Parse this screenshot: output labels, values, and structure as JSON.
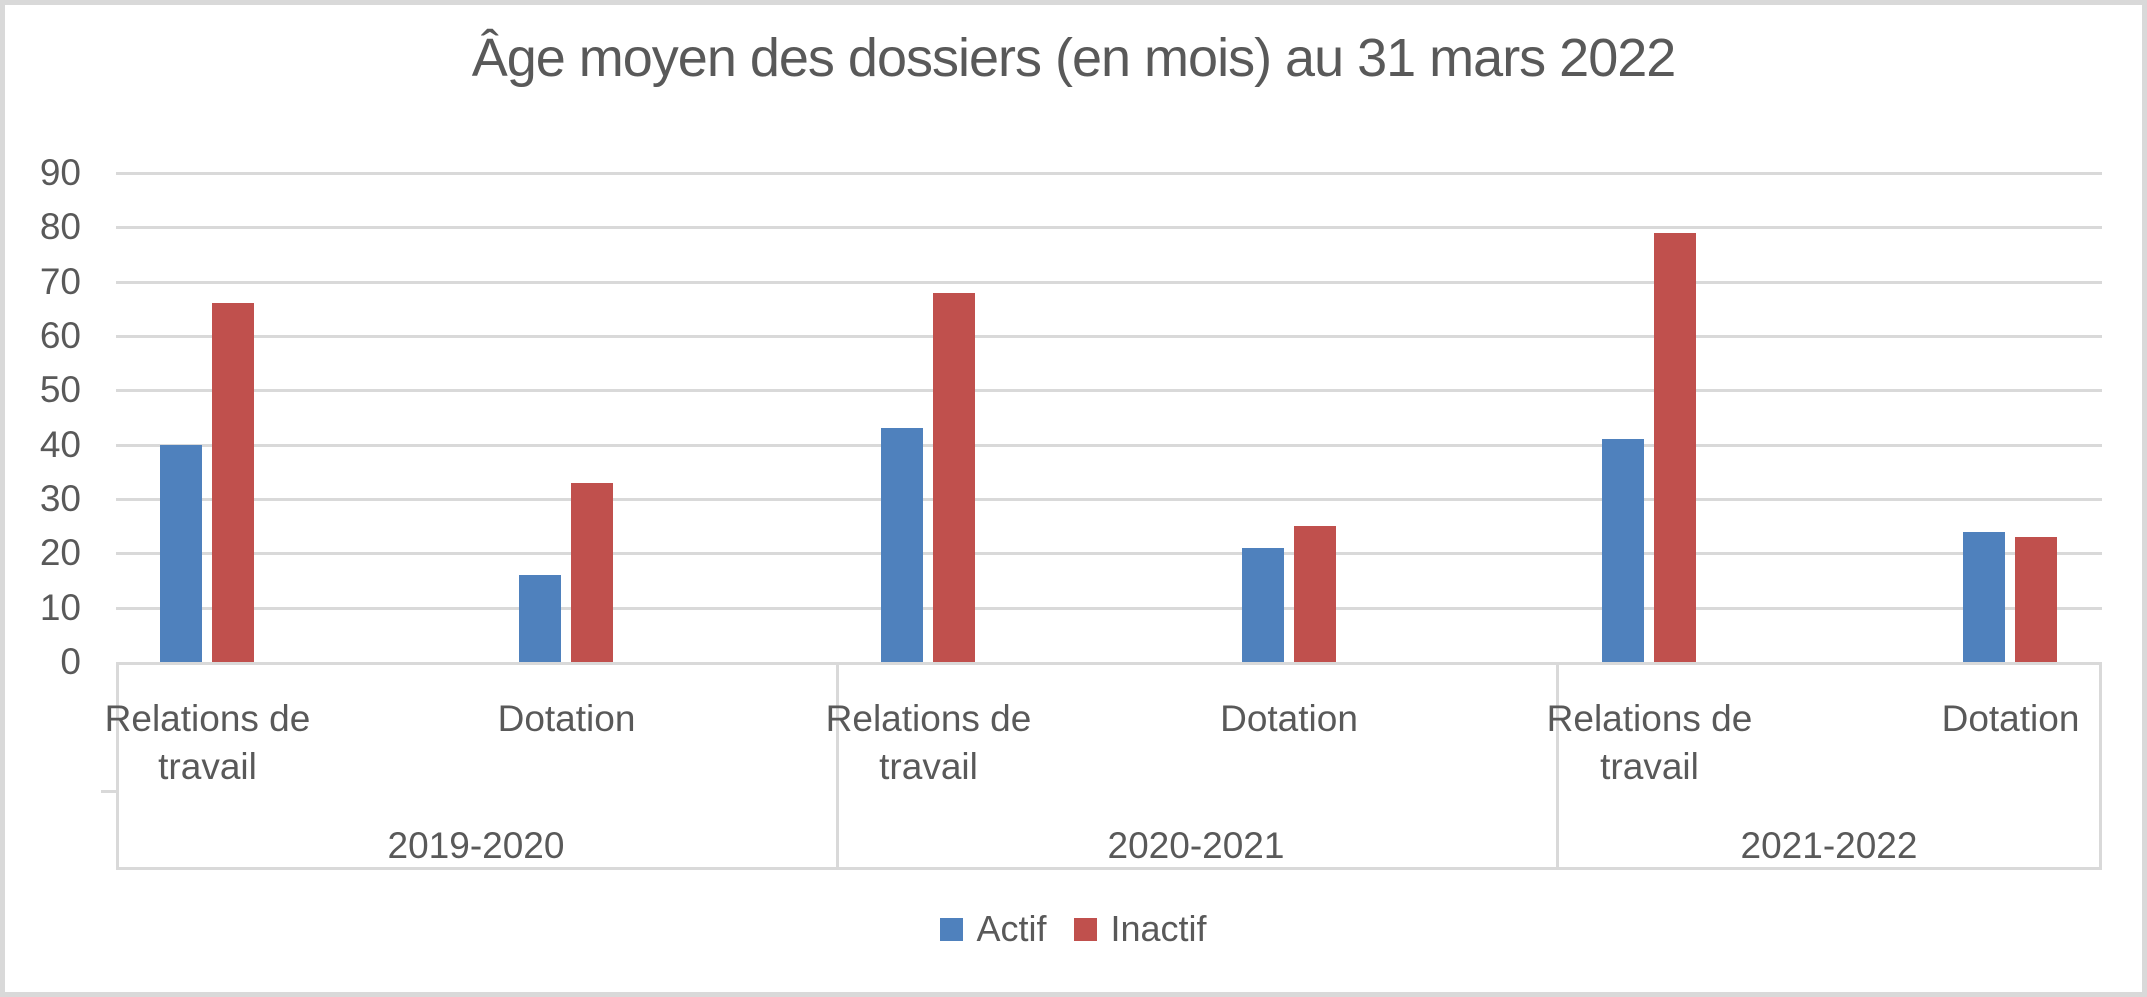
{
  "chart_data": {
    "type": "bar",
    "title": "Âge moyen des dossiers (en mois) au 31 mars 2022",
    "groups": [
      "2019-2020",
      "2020-2021",
      "2021-2022"
    ],
    "subcategories": [
      "Relations de travail",
      "Dotation"
    ],
    "cluster_labels": [
      "2019-2020 / Relations de travail",
      "2019-2020 / Dotation",
      "2020-2021 / Relations de travail",
      "2020-2021 / Dotation",
      "2021-2022 / Relations de travail",
      "2021-2022 / Dotation"
    ],
    "series": [
      {
        "name": "Actif",
        "color": "#4F81BD",
        "values": [
          40,
          16,
          43,
          21,
          41,
          24
        ]
      },
      {
        "name": "Inactif",
        "color": "#C0504D",
        "values": [
          66,
          33,
          68,
          25,
          79,
          23
        ]
      }
    ],
    "ylim": [
      0,
      90
    ],
    "yticks": [
      0,
      10,
      20,
      30,
      40,
      50,
      60,
      70,
      80,
      90
    ],
    "xlabel": "",
    "ylabel": "",
    "grid": true,
    "legend_position": "bottom",
    "colors": {
      "actif_bar": "#4F81BD",
      "inactif_bar": "#C0504D",
      "text": "#595959",
      "gridline": "#D9D9D9"
    }
  }
}
